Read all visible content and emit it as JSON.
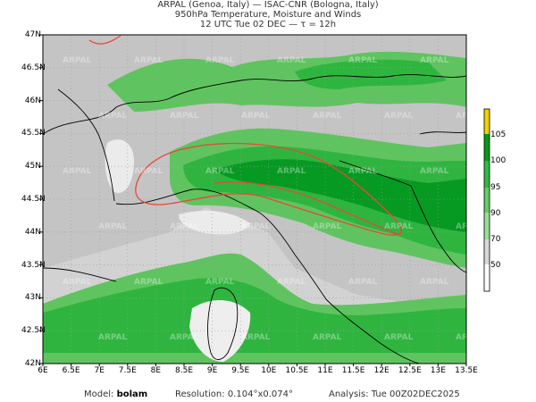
{
  "header": {
    "line1": "ARPAL (Genoa, Italy)  —  ISAC-CNR (Bologna, Italy)",
    "line2": "950hPa Temperature, Moisture and Winds",
    "line3": "12 UTC Tue 02 DEC  —  τ = 12h"
  },
  "axes": {
    "lat_labels": [
      "47N",
      "46.5N",
      "46N",
      "45.5N",
      "45N",
      "44.5N",
      "44N",
      "43.5N",
      "43N",
      "42.5N",
      "42N"
    ],
    "lon_labels": [
      "6E",
      "6.5E",
      "7E",
      "7.5E",
      "8E",
      "8.5E",
      "9E",
      "9.5E",
      "10E",
      "10.5E",
      "11E",
      "11.5E",
      "12E",
      "12.5E",
      "13E",
      "13.5E"
    ]
  },
  "colorbar": {
    "labels": [
      "105",
      "100",
      "95",
      "90",
      "70",
      "50"
    ],
    "colors": [
      "#f0d000",
      "#009a1c",
      "#33b845",
      "#66cc66",
      "#99dd99",
      "#cfe9cf",
      "#e8e8e8",
      "#ffffff"
    ]
  },
  "watermark": "ARPAL",
  "footer": {
    "model_label": "Model:",
    "model_value": "bolam",
    "resolution_label": "Resolution:",
    "resolution_value": "0.104°x0.074°",
    "analysis_label": "Analysis:",
    "analysis_value": "Tue 00Z02DEC2025"
  },
  "colors": {
    "land_grey": "#c2c2c2",
    "sea_grey": "#d6d6d6",
    "light_white": "#eeeeee",
    "green_light": "#66cc66",
    "green_mid": "#2fb53f",
    "green_dark": "#009a1c",
    "contour_red": "#e8473a",
    "border": "#000000"
  }
}
